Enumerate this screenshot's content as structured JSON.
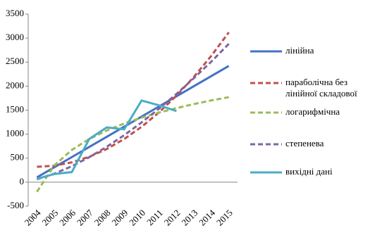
{
  "chart_data": {
    "type": "line",
    "categories": [
      "2004",
      "2005",
      "2006",
      "2007",
      "2008",
      "2009",
      "2010",
      "2011",
      "2012",
      "2013",
      "2014",
      "2015"
    ],
    "series": [
      {
        "name": "лінійна",
        "color": "#4472c4",
        "dashed": false,
        "values": [
          100,
          311,
          522,
          733,
          944,
          1155,
          1366,
          1577,
          1788,
          1999,
          2210,
          2420
        ]
      },
      {
        "name": "параболічна без лінійної складової",
        "color": "#c0504d",
        "dashed": true,
        "values": [
          320,
          343,
          413,
          528,
          690,
          898,
          1153,
          1453,
          1800,
          2193,
          2633,
          3120
        ]
      },
      {
        "name": "логарифмічна",
        "color": "#9bbb59",
        "dashed": true,
        "values": [
          -200,
          350,
          671,
          899,
          1076,
          1221,
          1343,
          1449,
          1542,
          1626,
          1702,
          1770
        ]
      },
      {
        "name": "степенева",
        "color": "#8064a2",
        "dashed": true,
        "values": [
          60,
          177,
          332,
          520,
          736,
          978,
          1244,
          1530,
          1837,
          2167,
          2512,
          2880
        ]
      },
      {
        "name": "вихідні дані",
        "color": "#4bacc6",
        "dashed": false,
        "values": [
          70,
          170,
          210,
          900,
          1140,
          1100,
          1700,
          1600,
          1480,
          null,
          null,
          null
        ]
      }
    ],
    "ylim": [
      -500,
      3500
    ],
    "yticks": [
      -500,
      0,
      500,
      1000,
      1500,
      2000,
      2500,
      3000,
      3500
    ],
    "grid": false,
    "legend": "right"
  }
}
